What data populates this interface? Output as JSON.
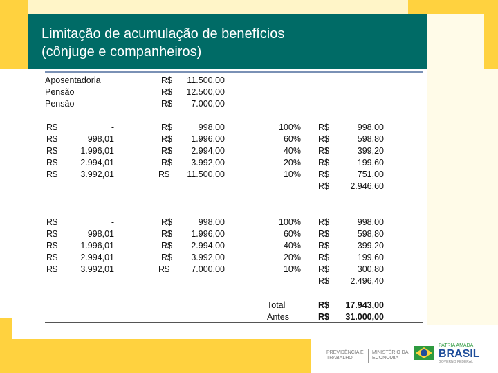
{
  "header": {
    "title": [
      "Limitação de acumulação de benefícios",
      "(cônjuge e companheiros)"
    ]
  },
  "intro": {
    "labels": [
      "Aposentadoria",
      "Pensão",
      "Pensão"
    ],
    "currency": [
      "R$",
      "R$",
      "R$"
    ],
    "amounts": [
      "11.500,00",
      "12.500,00",
      "7.000,00"
    ]
  },
  "tables": [
    {
      "income_currency": [
        "R$",
        "R$",
        "R$",
        "R$",
        "R$"
      ],
      "income_from": [
        "-",
        "998,01",
        "1.996,01",
        "2.994,01",
        "3.992,01"
      ],
      "band_currency": [
        "R$",
        "R$",
        "R$",
        "R$",
        "R$"
      ],
      "band_to": [
        "998,00",
        "1.996,00",
        "2.994,00",
        "3.992,00",
        "11.500,00"
      ],
      "rates": [
        "100%",
        "60%",
        "40%",
        "20%",
        "10%"
      ],
      "benefit_currency": [
        "R$",
        "R$",
        "R$",
        "R$",
        "R$",
        "R$"
      ],
      "benefit_amounts": [
        "998,00",
        "598,80",
        "399,20",
        "199,60",
        "751,00",
        "2.946,60"
      ]
    },
    {
      "income_currency": [
        "R$",
        "R$",
        "R$",
        "R$",
        "R$"
      ],
      "income_from": [
        "-",
        "998,01",
        "1.996,01",
        "2.994,01",
        "3.992,01"
      ],
      "band_currency": [
        "R$",
        "R$",
        "R$",
        "R$",
        "R$"
      ],
      "band_to": [
        "998,00",
        "1.996,00",
        "2.994,00",
        "3.992,00",
        "7.000,00"
      ],
      "rates": [
        "100%",
        "60%",
        "40%",
        "20%",
        "10%"
      ],
      "benefit_currency": [
        "R$",
        "R$",
        "R$",
        "R$",
        "R$",
        "R$"
      ],
      "benefit_amounts": [
        "998,00",
        "598,80",
        "399,20",
        "199,60",
        "300,80",
        "2.496,40"
      ]
    }
  ],
  "totals": {
    "labels": [
      "Total",
      "Antes"
    ],
    "currency": [
      "R$",
      "R$"
    ],
    "amounts": [
      "17.943,00",
      "31.000,00"
    ]
  },
  "footer": {
    "ministry_left": [
      "PREVIDÊNCIA E",
      "TRABALHO"
    ],
    "ministry_right": [
      "MINISTÉRIO DA",
      "ECONOMIA"
    ],
    "brand_top": "PATRIA AMADA",
    "brand": "BRASIL",
    "brand_bottom": "GOVERNO FEDERAL"
  }
}
